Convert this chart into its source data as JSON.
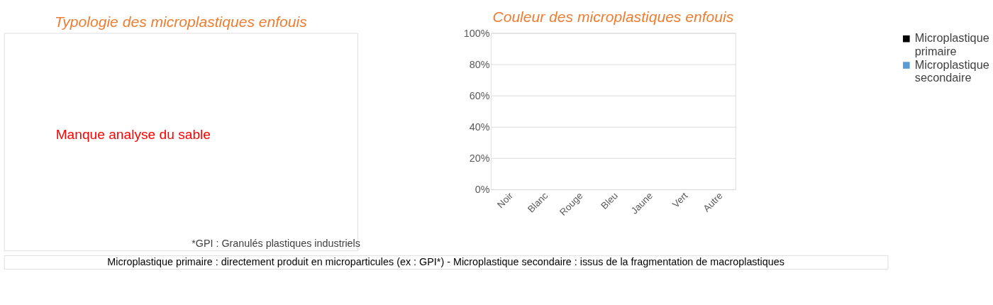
{
  "chart_data": [
    {
      "type": "other",
      "title": "Typologie des microplastiques enfouis",
      "annotations": [
        "Manque analyse du sable",
        "*GPI : Granulés plastiques industriels",
        "Microplastique primaire : directement produit en microparticules (ex : GPI*) - Microplastique secondaire : issus de la fragmentation de macroplastiques"
      ]
    },
    {
      "type": "bar",
      "title": "Couleur des microplastiques enfouis",
      "categories": [
        "Noir",
        "Blanc",
        "Rouge",
        "Bleu",
        "Jaune",
        "Vert",
        "Autre"
      ],
      "series": [
        {
          "name": "Microplastique primaire",
          "color": "#000000",
          "values": [
            null,
            null,
            null,
            null,
            null,
            null,
            null
          ]
        },
        {
          "name": "Microplastique secondaire",
          "color": "#5b9bd5",
          "values": [
            null,
            null,
            null,
            null,
            null,
            null,
            null
          ]
        }
      ],
      "ylim": [
        0,
        100
      ],
      "yticks": [
        {
          "value": 0,
          "label": "0%"
        },
        {
          "value": 20,
          "label": "20%"
        },
        {
          "value": 40,
          "label": "40%"
        },
        {
          "value": 60,
          "label": "60%"
        },
        {
          "value": 80,
          "label": "80%"
        },
        {
          "value": 100,
          "label": "100%"
        }
      ],
      "grid": "y",
      "legend": "right"
    }
  ]
}
